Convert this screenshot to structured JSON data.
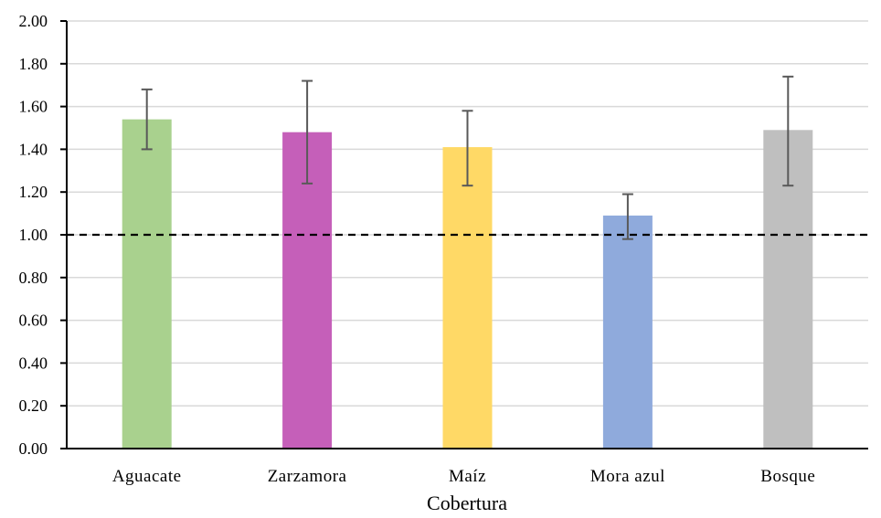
{
  "chart_data": {
    "type": "bar",
    "title": "",
    "xlabel": "Cobertura",
    "ylabel": "",
    "ylim": [
      0,
      2.0
    ],
    "yticks": [
      "0.00",
      "0.20",
      "0.40",
      "0.60",
      "0.80",
      "1.00",
      "1.20",
      "1.40",
      "1.60",
      "1.80",
      "2.00"
    ],
    "categories": [
      "Aguacate",
      "Zarzamora",
      "Maíz",
      "Mora azul",
      "Bosque"
    ],
    "values": [
      1.54,
      1.48,
      1.41,
      1.09,
      1.49
    ],
    "error_low": [
      1.4,
      1.24,
      1.23,
      0.98,
      1.23
    ],
    "error_high": [
      1.68,
      1.72,
      1.58,
      1.19,
      1.74
    ],
    "colors": [
      "#a9d18e",
      "#c55fb9",
      "#ffd966",
      "#8faadc",
      "#bfbfbf"
    ],
    "reference_line": 1.0,
    "grid": true,
    "legend": "none"
  }
}
